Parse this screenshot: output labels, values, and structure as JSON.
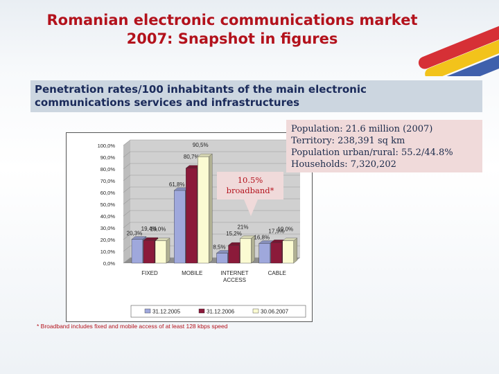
{
  "title": {
    "line1": "Romanian electronic communications market",
    "line2": "2007: Snapshot in figures"
  },
  "subtitle": {
    "line1": "Penetration rates/100 inhabitants of the main electronic",
    "line2": "communications services and infrastructures"
  },
  "info": {
    "lines": [
      "Population: 21.6 million (2007)",
      "Territory: 238,391 sq km",
      "Population urban/rural: 55.2/44.8%",
      "Households: 7,320,202"
    ]
  },
  "callout": {
    "line1": "10.5%",
    "line2": "broadband*"
  },
  "footnote": "* Broadband includes fixed and mobile access of at least 128 kbps speed",
  "colors": {
    "title": "#b3121c",
    "series": [
      "#9fa8dc",
      "#8b1a3a",
      "#fbfbd2"
    ]
  },
  "chart_data": {
    "type": "bar",
    "categories": [
      "FIXED",
      "MOBILE",
      "INTERNET ACCESS",
      "CABLE"
    ],
    "category_labels": [
      [
        "FIXED"
      ],
      [
        "MOBILE"
      ],
      [
        "INTERNET",
        "ACCESS"
      ],
      [
        "CABLE"
      ]
    ],
    "series": [
      {
        "name": "31.12.2005",
        "values": [
          20.3,
          61.8,
          8.5,
          16.8
        ],
        "labels": [
          "20,3%",
          "61,8%",
          "8,5%",
          "16,8%"
        ]
      },
      {
        "name": "31.12.2006",
        "values": [
          19.4,
          80.7,
          15.2,
          17.5
        ],
        "labels": [
          "19,4%",
          "80,7%",
          "15,2%",
          "17,5%"
        ]
      },
      {
        "name": "30.06.2007",
        "values": [
          19.0,
          90.5,
          21.0,
          19.0
        ],
        "labels": [
          "19,0%",
          "90,5%",
          "21%",
          "19,0%"
        ]
      }
    ],
    "ylim": [
      0,
      100
    ],
    "yticks": [
      0,
      10,
      20,
      30,
      40,
      50,
      60,
      70,
      80,
      90,
      100
    ],
    "ytick_labels": [
      "0,0%",
      "10,0%",
      "20,0%",
      "30,0%",
      "40,0%",
      "50,0%",
      "60,0%",
      "70,0%",
      "80,0%",
      "90,0%",
      "100,0%"
    ],
    "grid": true,
    "legend_position": "bottom"
  }
}
